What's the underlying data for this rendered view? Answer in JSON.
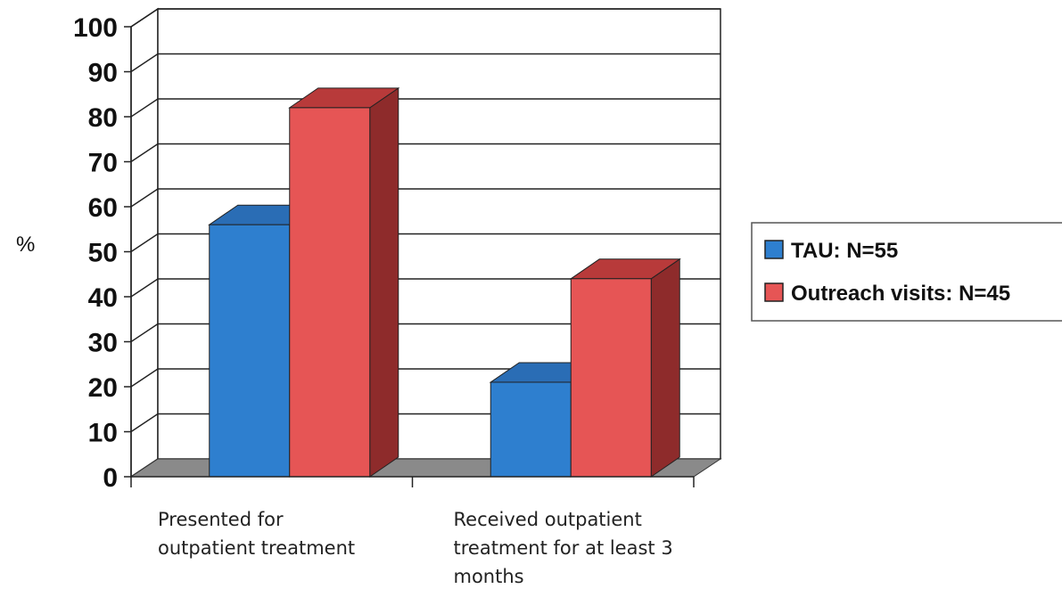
{
  "chart_data": {
    "type": "bar",
    "title": "",
    "xlabel": "",
    "ylabel": "%",
    "ylim": [
      0,
      100
    ],
    "yticks": [
      "0",
      "10",
      "20",
      "30",
      "40",
      "50",
      "60",
      "70",
      "80",
      "90",
      "100"
    ],
    "grid": true,
    "legend_position": "right",
    "categories": [
      [
        "Presented for",
        "outpatient treatment"
      ],
      [
        "Received outpatient",
        "treatment for at least 3",
        "months"
      ]
    ],
    "series": [
      {
        "name": "TAU: N=55",
        "values": [
          56,
          21
        ],
        "color": "#2e7fcf",
        "side_color": "#1d5c99",
        "top_color": "#2a6db5"
      },
      {
        "name": "Outreach visits: N=45",
        "values": [
          82,
          44
        ],
        "color": "#e65555",
        "side_color": "#8e2b2b",
        "top_color": "#b83a3a"
      }
    ]
  }
}
